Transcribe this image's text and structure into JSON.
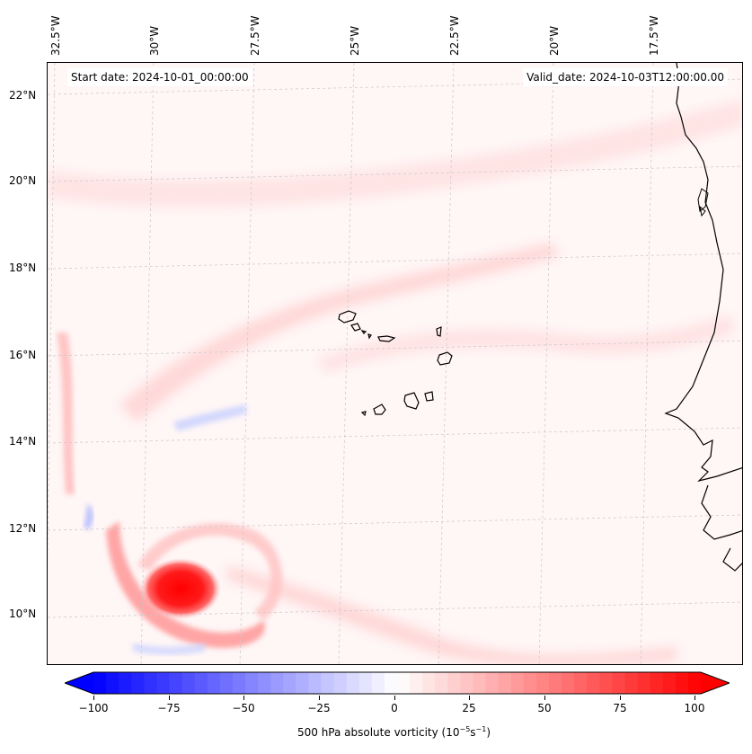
{
  "header": {
    "start_date": "Start date: 2024-10-01_00:00:00",
    "valid_date": "Valid_date: 2024-10-03T12:00:00.00"
  },
  "longitude_labels": [
    "32.5°W",
    "30°W",
    "27.5°W",
    "25°W",
    "22.5°W",
    "20°W",
    "17.5°W"
  ],
  "latitude_labels": [
    "22°N",
    "20°N",
    "18°N",
    "16°N",
    "14°N",
    "12°N",
    "10°N"
  ],
  "colorbar": {
    "title": "500 hPa absolute vorticity (10",
    "title_exp1": "−5",
    "title_mid": "s",
    "title_exp2": "−1",
    "title_end": ")",
    "ticks": [
      "−100",
      "−75",
      "−50",
      "−25",
      "0",
      "25",
      "50",
      "75",
      "100"
    ],
    "min": -100,
    "max": 100,
    "levels": 48,
    "low_color": "#0000ff",
    "mid_color": "#ffffff",
    "high_color": "#ff0000"
  },
  "map": {
    "background_color": "#fff6f6",
    "coastline_color": "#000000",
    "gridline_color": "#cccccc"
  }
}
